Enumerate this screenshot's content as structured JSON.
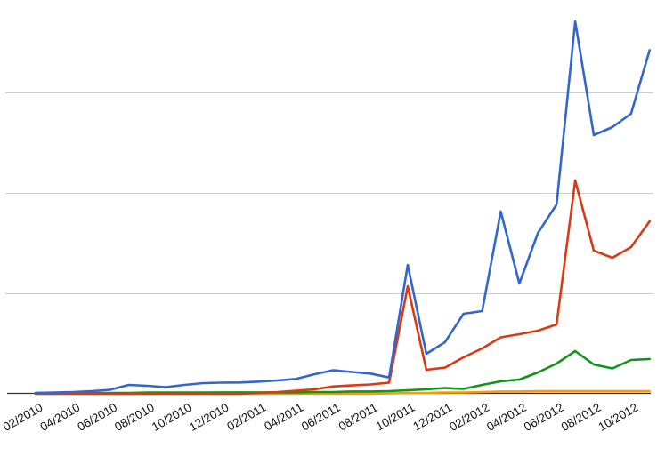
{
  "chart_data": {
    "type": "line",
    "title": "",
    "xlabel": "",
    "ylabel": "",
    "legend_position": "none",
    "y_axis_tick_labels": "none",
    "background_color": "#ffffff",
    "grid_on": true,
    "grid_color": "#cccccc",
    "axis_line_color": "#333333",
    "tick_label_color": "#111111",
    "ylim": [
      0,
      3.93
    ],
    "gridline_values": [
      1,
      2,
      3
    ],
    "x": [
      "02/2010",
      "03/2010",
      "04/2010",
      "05/2010",
      "06/2010",
      "07/2010",
      "08/2010",
      "09/2010",
      "10/2010",
      "11/2010",
      "12/2010",
      "01/2011",
      "02/2011",
      "03/2011",
      "04/2011",
      "05/2011",
      "06/2011",
      "07/2011",
      "08/2011",
      "09/2011",
      "10/2011",
      "11/2011",
      "12/2011",
      "01/2012",
      "02/2012",
      "03/2012",
      "04/2012",
      "05/2012",
      "06/2012",
      "07/2012",
      "08/2012",
      "09/2012",
      "10/2012",
      "11/2012"
    ],
    "x_tick_labels": [
      "02/2010",
      "04/2010",
      "06/2010",
      "08/2010",
      "10/2010",
      "12/2010",
      "02/2011",
      "04/2011",
      "06/2011",
      "08/2011",
      "10/2011",
      "12/2011",
      "02/2012",
      "04/2012",
      "06/2012",
      "08/2012",
      "10/2012"
    ],
    "note": "values are in gridline units (1.0 = one horizontal gridline interval); y axis is unlabeled in the source image",
    "series": [
      {
        "name": "series-orange",
        "color": "#FF9900",
        "values": [
          0.004,
          0.004,
          0.004,
          0.004,
          0.004,
          0.004,
          0.004,
          0.004,
          0.004,
          0.004,
          0.004,
          0.004,
          0.004,
          0.004,
          0.004,
          0.004,
          0.004,
          0.004,
          0.004,
          0.009,
          0.013,
          0.013,
          0.018,
          0.018,
          0.022,
          0.027,
          0.027,
          0.031,
          0.031,
          0.031,
          0.031,
          0.031,
          0.031,
          0.031
        ]
      },
      {
        "name": "series-green",
        "color": "#109618",
        "values": [
          0.013,
          0.013,
          0.013,
          0.013,
          0.013,
          0.013,
          0.018,
          0.018,
          0.018,
          0.018,
          0.019,
          0.019,
          0.019,
          0.019,
          0.019,
          0.022,
          0.022,
          0.027,
          0.027,
          0.031,
          0.04,
          0.049,
          0.062,
          0.053,
          0.093,
          0.128,
          0.146,
          0.217,
          0.305,
          0.429,
          0.296,
          0.257,
          0.341,
          0.35
        ]
      },
      {
        "name": "series-red",
        "color": "#DC3912",
        "values": [
          0.004,
          0.004,
          0.004,
          0.004,
          0.004,
          0.004,
          0.004,
          0.004,
          0.004,
          0.004,
          0.004,
          0.004,
          0.013,
          0.022,
          0.035,
          0.049,
          0.078,
          0.088,
          0.097,
          0.115,
          1.075,
          0.243,
          0.265,
          0.367,
          0.456,
          0.566,
          0.597,
          0.633,
          0.695,
          2.128,
          1.429,
          1.358,
          1.465,
          1.721
        ]
      },
      {
        "name": "series-blue",
        "color": "#3366CC",
        "values": [
          0.013,
          0.018,
          0.022,
          0.031,
          0.044,
          0.093,
          0.084,
          0.071,
          0.093,
          0.111,
          0.115,
          0.117,
          0.126,
          0.137,
          0.152,
          0.199,
          0.239,
          0.221,
          0.205,
          0.166,
          1.288,
          0.403,
          0.518,
          0.801,
          0.827,
          1.819,
          1.102,
          1.606,
          1.889,
          3.712,
          2.58,
          2.659,
          2.792,
          3.425
        ]
      }
    ]
  }
}
